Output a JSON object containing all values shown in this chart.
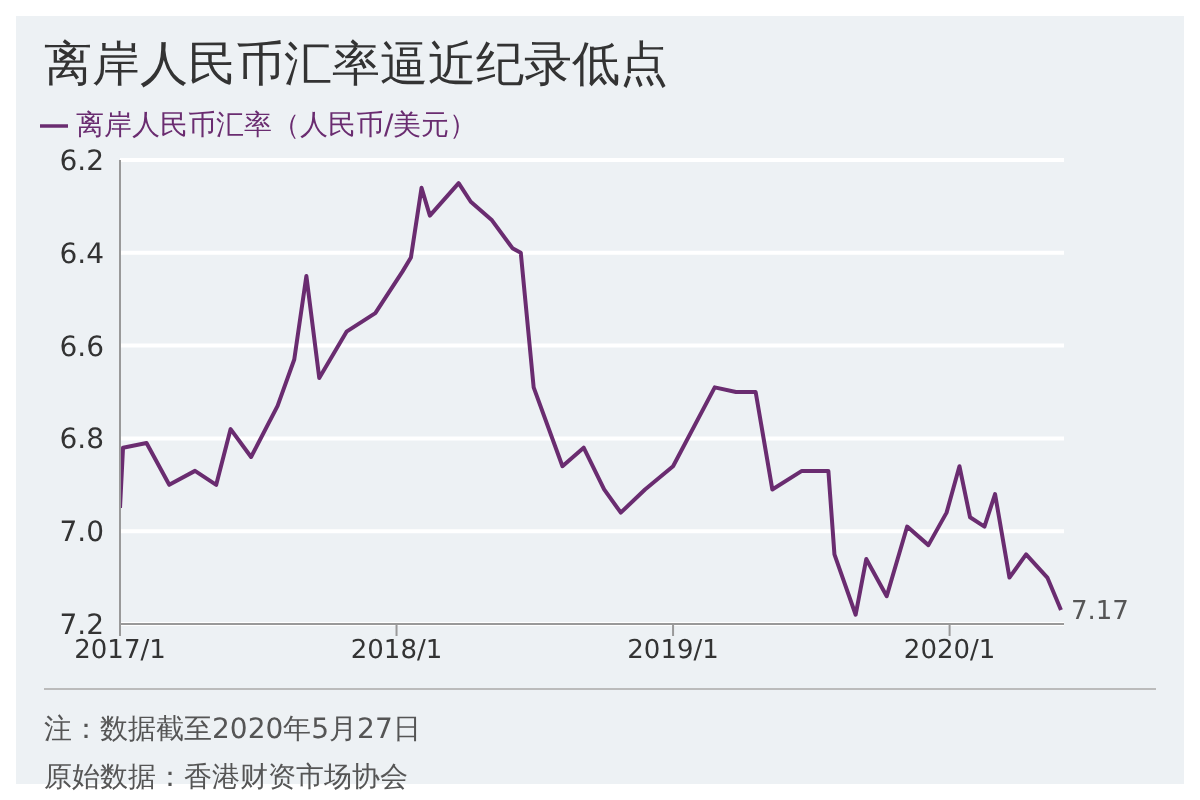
{
  "chart_data": {
    "type": "line",
    "title": "离岸人民币汇率逼近纪录低点",
    "x": [
      "2017-01-01",
      "2017-01-05",
      "2017-02-05",
      "2017-03-07",
      "2017-04-10",
      "2017-05-08",
      "2017-05-27",
      "2017-06-23",
      "2017-07-28",
      "2017-08-19",
      "2017-09-04",
      "2017-09-21",
      "2017-10-27",
      "2017-12-04",
      "2018-01-09",
      "2018-01-20",
      "2018-02-03",
      "2018-02-14",
      "2018-03-24",
      "2018-04-09",
      "2018-05-07",
      "2018-06-03",
      "2018-06-14",
      "2018-07-01",
      "2018-08-08",
      "2018-09-05",
      "2018-10-02",
      "2018-10-24",
      "2018-11-25",
      "2019-01-01",
      "2019-02-25",
      "2019-03-25",
      "2019-04-20",
      "2019-05-12",
      "2019-06-20",
      "2019-07-25",
      "2019-08-02",
      "2019-08-30",
      "2019-09-13",
      "2019-10-10",
      "2019-11-06",
      "2019-12-04",
      "2019-12-28",
      "2020-01-14",
      "2020-01-28",
      "2020-02-16",
      "2020-03-01",
      "2020-03-20",
      "2020-04-11",
      "2020-05-09",
      "2020-05-27"
    ],
    "series": [
      {
        "name": "离岸人民币汇率（人民币/美元）",
        "color": "#6a2c70",
        "values": [
          6.95,
          6.82,
          6.81,
          6.9,
          6.87,
          6.9,
          6.78,
          6.84,
          6.73,
          6.63,
          6.45,
          6.67,
          6.57,
          6.53,
          6.44,
          6.41,
          6.26,
          6.32,
          6.25,
          6.29,
          6.33,
          6.39,
          6.4,
          6.69,
          6.86,
          6.82,
          6.91,
          6.96,
          6.91,
          6.86,
          6.69,
          6.7,
          6.7,
          6.91,
          6.87,
          6.87,
          7.05,
          7.18,
          7.06,
          7.14,
          6.99,
          7.03,
          6.96,
          6.86,
          6.97,
          6.99,
          6.92,
          7.1,
          7.05,
          7.1,
          7.17
        ]
      }
    ],
    "xlim": [
      "2017-01-01",
      "2020-05-31"
    ],
    "xticks": [
      {
        "value": "2017-01-01",
        "label": "2017/1"
      },
      {
        "value": "2018-01-01",
        "label": "2018/1"
      },
      {
        "value": "2019-01-01",
        "label": "2019/1"
      },
      {
        "value": "2020-01-01",
        "label": "2020/1"
      }
    ],
    "ylim": [
      7.2,
      6.2
    ],
    "yticks": [
      6.2,
      6.4,
      6.6,
      6.8,
      {
        "value": 7,
        "label": "7.0"
      },
      7.2
    ],
    "grid": "y",
    "legend": "top left",
    "annotations": [
      {
        "text": "7.17",
        "x": "2020-05-27",
        "y": 7.17
      },
      "注：数据截至2020年5月27日",
      "原始数据：香港财资市场协会"
    ]
  }
}
